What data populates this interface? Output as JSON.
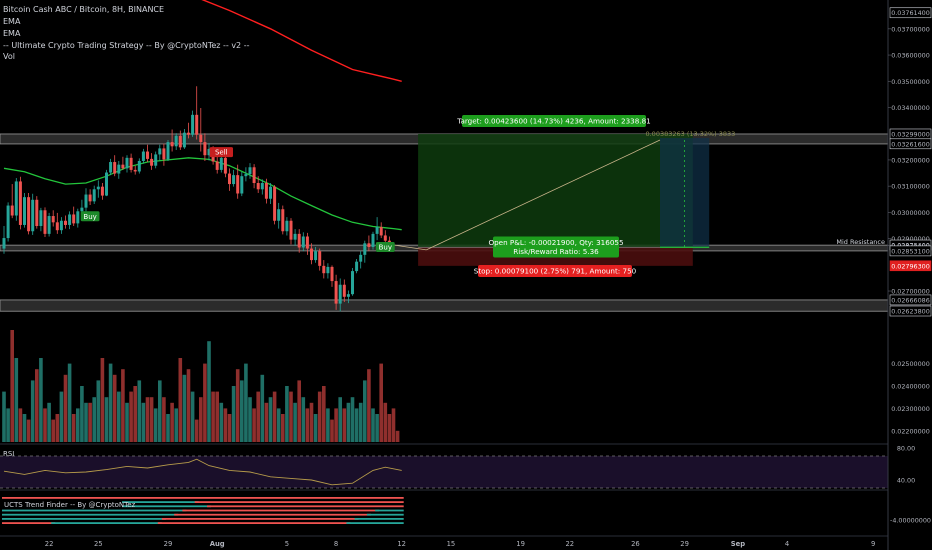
{
  "header": {
    "title": "Bitcoin Cash ABC / Bitcoin, 8H, BINANCE",
    "legend": [
      "EMA",
      "EMA",
      "-- Ultimate Crypto Trading Strategy -- By @CryptoNTez -- v2 --",
      "Vol"
    ]
  },
  "colors": {
    "background": "#000000",
    "up": "#26a69a",
    "down": "#ef5350",
    "ema_fast": "#23c53c",
    "ema_slow": "#ff1f1f",
    "zone_fill": "#2b2b2b",
    "target_fill": "#0e3b0e",
    "stop_fill": "#4a0d0d",
    "label_green": "#1d9e1d",
    "label_red": "#e52020",
    "rsi_line": "#b69b4a",
    "axis_text": "#b2b5be"
  },
  "chart_data": [
    {
      "type": "candlestick",
      "title": "Bitcoin Cash ABC / Bitcoin, 8H, BINANCE",
      "ylim": [
        0.0262,
        0.0381
      ],
      "price_ticks": [
        0.037614,
        0.037,
        0.036,
        0.035,
        0.034,
        0.03299,
        0.032616,
        0.032,
        0.031,
        0.03,
        0.029,
        0.028754,
        0.028741,
        0.028531,
        0.027963,
        0.027,
        0.02666086,
        0.026238
      ],
      "badges": [
        {
          "value": "0.03761400",
          "style": "outline"
        },
        {
          "value": "0.03299000",
          "style": "outline"
        },
        {
          "value": "0.03261600",
          "style": "outline"
        },
        {
          "value": "0.02875400",
          "style": "outline"
        },
        {
          "value": "0.02853100",
          "style": "outline"
        },
        {
          "value": "0.02796300",
          "style": "red"
        },
        {
          "value": "0.02666086",
          "style": "outline"
        },
        {
          "value": "0.02623800",
          "style": "outline"
        }
      ],
      "x_labels": [
        {
          "label": "22",
          "bar": 11
        },
        {
          "label": "25",
          "bar": 23
        },
        {
          "label": "29",
          "bar": 40
        },
        {
          "label": "Aug",
          "bar": 52
        },
        {
          "label": "5",
          "bar": 69
        },
        {
          "label": "8",
          "bar": 81
        },
        {
          "label": "12",
          "bar": 97
        },
        {
          "label": "15",
          "bar": 109
        },
        {
          "label": "19",
          "bar": 126
        },
        {
          "label": "22",
          "bar": 138
        },
        {
          "label": "26",
          "bar": 154
        },
        {
          "label": "29",
          "bar": 166
        },
        {
          "label": "Sep",
          "bar": 179
        },
        {
          "label": "4",
          "bar": 191
        },
        {
          "label": "9",
          "bar": 212
        }
      ],
      "candles": [
        [
          0.02862,
          0.02948,
          0.02842,
          0.02902
        ],
        [
          0.02902,
          0.03038,
          0.02889,
          0.03026
        ],
        [
          0.03026,
          0.03108,
          0.02978,
          0.02988
        ],
        [
          0.02988,
          0.03131,
          0.02968,
          0.03118
        ],
        [
          0.03118,
          0.03136,
          0.02935,
          0.02952
        ],
        [
          0.02952,
          0.03074,
          0.02942,
          0.03058
        ],
        [
          0.03058,
          0.03074,
          0.02916,
          0.02928
        ],
        [
          0.02928,
          0.03071,
          0.02914,
          0.03048
        ],
        [
          0.03048,
          0.03062,
          0.02938,
          0.02948
        ],
        [
          0.02948,
          0.03017,
          0.02928,
          0.03008
        ],
        [
          0.03008,
          0.03019,
          0.02906,
          0.02918
        ],
        [
          0.02918,
          0.02998,
          0.02908,
          0.02986
        ],
        [
          0.02986,
          0.03008,
          0.02946,
          0.02962
        ],
        [
          0.02962,
          0.02998,
          0.02918,
          0.02932
        ],
        [
          0.02932,
          0.02982,
          0.02918,
          0.02968
        ],
        [
          0.02968,
          0.02988,
          0.02938,
          0.02952
        ],
        [
          0.02952,
          0.03004,
          0.02936,
          0.02992
        ],
        [
          0.02992,
          0.03022,
          0.02948,
          0.02958
        ],
        [
          0.02958,
          0.03014,
          0.02942,
          0.03004
        ],
        [
          0.03004,
          0.03048,
          0.02988,
          0.03018
        ],
        [
          0.03018,
          0.03092,
          0.02998,
          0.03068
        ],
        [
          0.03068,
          0.03088,
          0.03028,
          0.03042
        ],
        [
          0.03042,
          0.03102,
          0.03032,
          0.03088
        ],
        [
          0.03088,
          0.03122,
          0.03056,
          0.03098
        ],
        [
          0.03098,
          0.03112,
          0.03048,
          0.03064
        ],
        [
          0.03064,
          0.03162,
          0.03062,
          0.03152
        ],
        [
          0.03152,
          0.03204,
          0.03142,
          0.03192
        ],
        [
          0.03192,
          0.03218,
          0.03138,
          0.03148
        ],
        [
          0.03148,
          0.03196,
          0.03128,
          0.03182
        ],
        [
          0.03182,
          0.03212,
          0.03162,
          0.03168
        ],
        [
          0.03168,
          0.03218,
          0.03152,
          0.03208
        ],
        [
          0.03208,
          0.03224,
          0.03152,
          0.03162
        ],
        [
          0.03162,
          0.03178,
          0.03144,
          0.03156
        ],
        [
          0.03156,
          0.03206,
          0.03148,
          0.03196
        ],
        [
          0.03196,
          0.03242,
          0.03186,
          0.03232
        ],
        [
          0.03232,
          0.03258,
          0.03192,
          0.03204
        ],
        [
          0.03204,
          0.03226,
          0.03162,
          0.03178
        ],
        [
          0.03178,
          0.03232,
          0.03168,
          0.03221
        ],
        [
          0.03221,
          0.03258,
          0.03198,
          0.03244
        ],
        [
          0.03244,
          0.03262,
          0.03178,
          0.03202
        ],
        [
          0.03202,
          0.03276,
          0.03196,
          0.03268
        ],
        [
          0.03268,
          0.03316,
          0.03232,
          0.03252
        ],
        [
          0.03252,
          0.03302,
          0.03238,
          0.03292
        ],
        [
          0.03292,
          0.03312,
          0.03238,
          0.03248
        ],
        [
          0.03248,
          0.03318,
          0.03242,
          0.03304
        ],
        [
          0.03304,
          0.03342,
          0.03282,
          0.03296
        ],
        [
          0.03296,
          0.03388,
          0.03288,
          0.03372
        ],
        [
          0.03372,
          0.03481,
          0.03278,
          0.03296
        ],
        [
          0.03296,
          0.03398,
          0.03232,
          0.03268
        ],
        [
          0.03268,
          0.03302,
          0.03196,
          0.03218
        ],
        [
          0.03218,
          0.03264,
          0.03198,
          0.03242
        ],
        [
          0.03242,
          0.03252,
          0.03182,
          0.03194
        ],
        [
          0.03194,
          0.03236,
          0.03148,
          0.03162
        ],
        [
          0.03162,
          0.03226,
          0.03152,
          0.03208
        ],
        [
          0.03208,
          0.03222,
          0.03134,
          0.03148
        ],
        [
          0.03148,
          0.03168,
          0.03082,
          0.03108
        ],
        [
          0.03108,
          0.03162,
          0.03098,
          0.03142
        ],
        [
          0.03142,
          0.03182,
          0.03052,
          0.03072
        ],
        [
          0.03072,
          0.03154,
          0.03062,
          0.03138
        ],
        [
          0.03138,
          0.03172,
          0.03118,
          0.03146
        ],
        [
          0.03146,
          0.03188,
          0.03128,
          0.03172
        ],
        [
          0.03172,
          0.03184,
          0.03092,
          0.03112
        ],
        [
          0.03112,
          0.03138,
          0.03074,
          0.03088
        ],
        [
          0.03088,
          0.03126,
          0.03068,
          0.03112
        ],
        [
          0.03112,
          0.03128,
          0.03034,
          0.03052
        ],
        [
          0.03052,
          0.03112,
          0.03032,
          0.03098
        ],
        [
          0.03098,
          0.03104,
          0.02954,
          0.02968
        ],
        [
          0.02968,
          0.03036,
          0.02938,
          0.03012
        ],
        [
          0.03012,
          0.03026,
          0.02916,
          0.02928
        ],
        [
          0.02928,
          0.02982,
          0.02912,
          0.02968
        ],
        [
          0.02968,
          0.02978,
          0.02878,
          0.02896
        ],
        [
          0.02896,
          0.02936,
          0.02872,
          0.02918
        ],
        [
          0.02918,
          0.02936,
          0.02846,
          0.02866
        ],
        [
          0.02866,
          0.02924,
          0.02852,
          0.02908
        ],
        [
          0.02908,
          0.02922,
          0.02838,
          0.02862
        ],
        [
          0.02862,
          0.02882,
          0.02802,
          0.02818
        ],
        [
          0.02818,
          0.02868,
          0.02808,
          0.02852
        ],
        [
          0.02852,
          0.02862,
          0.02778,
          0.02796
        ],
        [
          0.02796,
          0.02818,
          0.02748,
          0.02768
        ],
        [
          0.02768,
          0.02806,
          0.02748,
          0.02792
        ],
        [
          0.02792,
          0.02798,
          0.02716,
          0.02738
        ],
        [
          0.02738,
          0.02762,
          0.02628,
          0.02652
        ],
        [
          0.02652,
          0.02748,
          0.02622,
          0.02724
        ],
        [
          0.02724,
          0.02744,
          0.02658,
          0.02678
        ],
        [
          0.02678,
          0.02702,
          0.02654,
          0.02688
        ],
        [
          0.02688,
          0.02788,
          0.02682,
          0.02776
        ],
        [
          0.02776,
          0.02822,
          0.02768,
          0.02812
        ],
        [
          0.02812,
          0.02852,
          0.02786,
          0.02838
        ],
        [
          0.02838,
          0.02892,
          0.02808,
          0.02882
        ],
        [
          0.02882,
          0.02912,
          0.02852,
          0.02868
        ],
        [
          0.02868,
          0.02926,
          0.02858,
          0.02918
        ],
        [
          0.02918,
          0.02982,
          0.02894,
          0.02944
        ],
        [
          0.02944,
          0.02962,
          0.02902,
          0.02912
        ],
        [
          0.02912,
          0.02932,
          0.02878,
          0.02892
        ],
        [
          0.02892,
          0.02908,
          0.02866,
          0.02878
        ]
      ],
      "ema_fast": [
        [
          0,
          0.03168
        ],
        [
          5,
          0.03155
        ],
        [
          10,
          0.03128
        ],
        [
          15,
          0.03108
        ],
        [
          20,
          0.03112
        ],
        [
          25,
          0.03138
        ],
        [
          30,
          0.03172
        ],
        [
          35,
          0.03192
        ],
        [
          40,
          0.032
        ],
        [
          45,
          0.03208
        ],
        [
          50,
          0.03202
        ],
        [
          55,
          0.03178
        ],
        [
          60,
          0.03142
        ],
        [
          65,
          0.03106
        ],
        [
          70,
          0.03062
        ],
        [
          75,
          0.03026
        ],
        [
          80,
          0.0299
        ],
        [
          85,
          0.02962
        ],
        [
          90,
          0.02946
        ],
        [
          95,
          0.02938
        ],
        [
          97,
          0.02934
        ]
      ],
      "ema_slow": [
        [
          47,
          0.0382
        ],
        [
          55,
          0.0377
        ],
        [
          65,
          0.037
        ],
        [
          75,
          0.03618
        ],
        [
          85,
          0.03545
        ],
        [
          95,
          0.03508
        ],
        [
          97,
          0.035
        ]
      ],
      "zones": [
        {
          "top": 0.03299,
          "bottom": 0.03261
        },
        {
          "top": 0.02875,
          "bottom": 0.02853
        },
        {
          "top": 0.02666,
          "bottom": 0.02623
        }
      ],
      "resistance_label": "Mid Resistance",
      "position": {
        "start_bar": 101,
        "end_bar": 168,
        "entry": 0.02867,
        "target": 0.03299,
        "stop": 0.02796,
        "target_label": "Target: 0.00423600 (14.73%) 4236, Amount: 2338.81",
        "stop_label": "Stop: 0.00079100 (2.75%) 791, Amount: 750",
        "pnl_label": "Open P&L: -0.00021900, Qty: 316055",
        "ratio_label": "Risk/Reward Ratio: 5.36"
      },
      "projection": {
        "start_bar": 160,
        "end_bar": 172,
        "label": "0.00383263 (13.32%) 3833"
      },
      "signals": [
        {
          "text": "Buy",
          "bar": 21,
          "price": 0.02985,
          "kind": "buy"
        },
        {
          "text": "Sell",
          "bar": 53,
          "price": 0.0323,
          "kind": "sell"
        },
        {
          "text": "Buy",
          "bar": 93,
          "price": 0.02868,
          "kind": "buy"
        }
      ]
    },
    {
      "type": "bar",
      "title": "",
      "ylabel": "",
      "ylim": [
        0.0215,
        0.0265
      ],
      "ticks": [
        0.025,
        0.024,
        0.023,
        0.022
      ],
      "tick_labels": [
        "0.02500000",
        "0.02400000",
        "0.02300000",
        "0.02200000"
      ],
      "values": [
        18,
        12,
        40,
        30,
        12,
        10,
        8,
        22,
        26,
        30,
        12,
        14,
        8,
        10,
        18,
        24,
        28,
        10,
        12,
        20,
        14,
        14,
        16,
        22,
        30,
        16,
        28,
        24,
        18,
        26,
        14,
        18,
        20,
        22,
        14,
        16,
        16,
        12,
        22,
        16,
        10,
        14,
        12,
        30,
        24,
        26,
        18,
        8,
        16,
        28,
        36,
        18,
        18,
        14,
        12,
        10,
        20,
        26,
        22,
        28,
        16,
        12,
        18,
        24,
        14,
        16,
        18,
        12,
        10,
        20,
        18,
        14,
        22,
        16,
        12,
        14,
        10,
        18,
        20,
        12,
        8,
        12,
        16,
        12,
        14,
        16,
        12,
        14,
        22,
        26,
        12,
        10,
        28,
        14,
        10,
        12,
        4
      ]
    },
    {
      "type": "line",
      "title": "RSI",
      "ylim": [
        30,
        80
      ],
      "tick_values": [
        80,
        40
      ],
      "tick_labels": [
        "80.00",
        "40.00"
      ],
      "band": [
        70,
        30
      ],
      "values": [
        [
          0,
          51
        ],
        [
          5,
          47
        ],
        [
          10,
          52
        ],
        [
          15,
          49
        ],
        [
          20,
          50
        ],
        [
          25,
          53
        ],
        [
          30,
          57
        ],
        [
          35,
          55
        ],
        [
          40,
          59
        ],
        [
          45,
          62
        ],
        [
          47,
          66
        ],
        [
          50,
          58
        ],
        [
          55,
          52
        ],
        [
          60,
          50
        ],
        [
          65,
          44
        ],
        [
          70,
          42
        ],
        [
          75,
          40
        ],
        [
          80,
          34
        ],
        [
          85,
          36
        ],
        [
          90,
          52
        ],
        [
          93,
          56
        ],
        [
          97,
          52
        ]
      ]
    },
    {
      "type": "heatmap",
      "title": "UCTS Trend Finder -- By @CryptoNTez",
      "ylim": [
        -6,
        0
      ],
      "tick_values": [
        -4
      ],
      "tick_labels": [
        "-4.00000000"
      ],
      "rows": [
        [
          {
            "from": 0,
            "to": 97,
            "color": "#ef5350"
          }
        ],
        [
          {
            "from": 0,
            "to": 47,
            "color": "#26a69a"
          },
          {
            "from": 47,
            "to": 97,
            "color": "#ef5350"
          }
        ],
        [
          {
            "from": 0,
            "to": 50,
            "color": "#26a69a"
          },
          {
            "from": 50,
            "to": 97,
            "color": "#ef5350"
          }
        ],
        [
          {
            "from": 0,
            "to": 44,
            "color": "#26a69a"
          },
          {
            "from": 44,
            "to": 91,
            "color": "#ef5350"
          },
          {
            "from": 91,
            "to": 97,
            "color": "#26a69a"
          }
        ],
        [
          {
            "from": 0,
            "to": 42,
            "color": "#26a69a"
          },
          {
            "from": 42,
            "to": 89,
            "color": "#ef5350"
          },
          {
            "from": 89,
            "to": 97,
            "color": "#26a69a"
          }
        ],
        [
          {
            "from": 0,
            "to": 39,
            "color": "#26a69a"
          },
          {
            "from": 39,
            "to": 86,
            "color": "#ef5350"
          },
          {
            "from": 86,
            "to": 97,
            "color": "#26a69a"
          }
        ],
        [
          {
            "from": 0,
            "to": 12,
            "color": "#ef5350"
          },
          {
            "from": 12,
            "to": 38,
            "color": "#26a69a"
          },
          {
            "from": 38,
            "to": 84,
            "color": "#ef5350"
          },
          {
            "from": 84,
            "to": 97,
            "color": "#26a69a"
          }
        ]
      ]
    }
  ]
}
